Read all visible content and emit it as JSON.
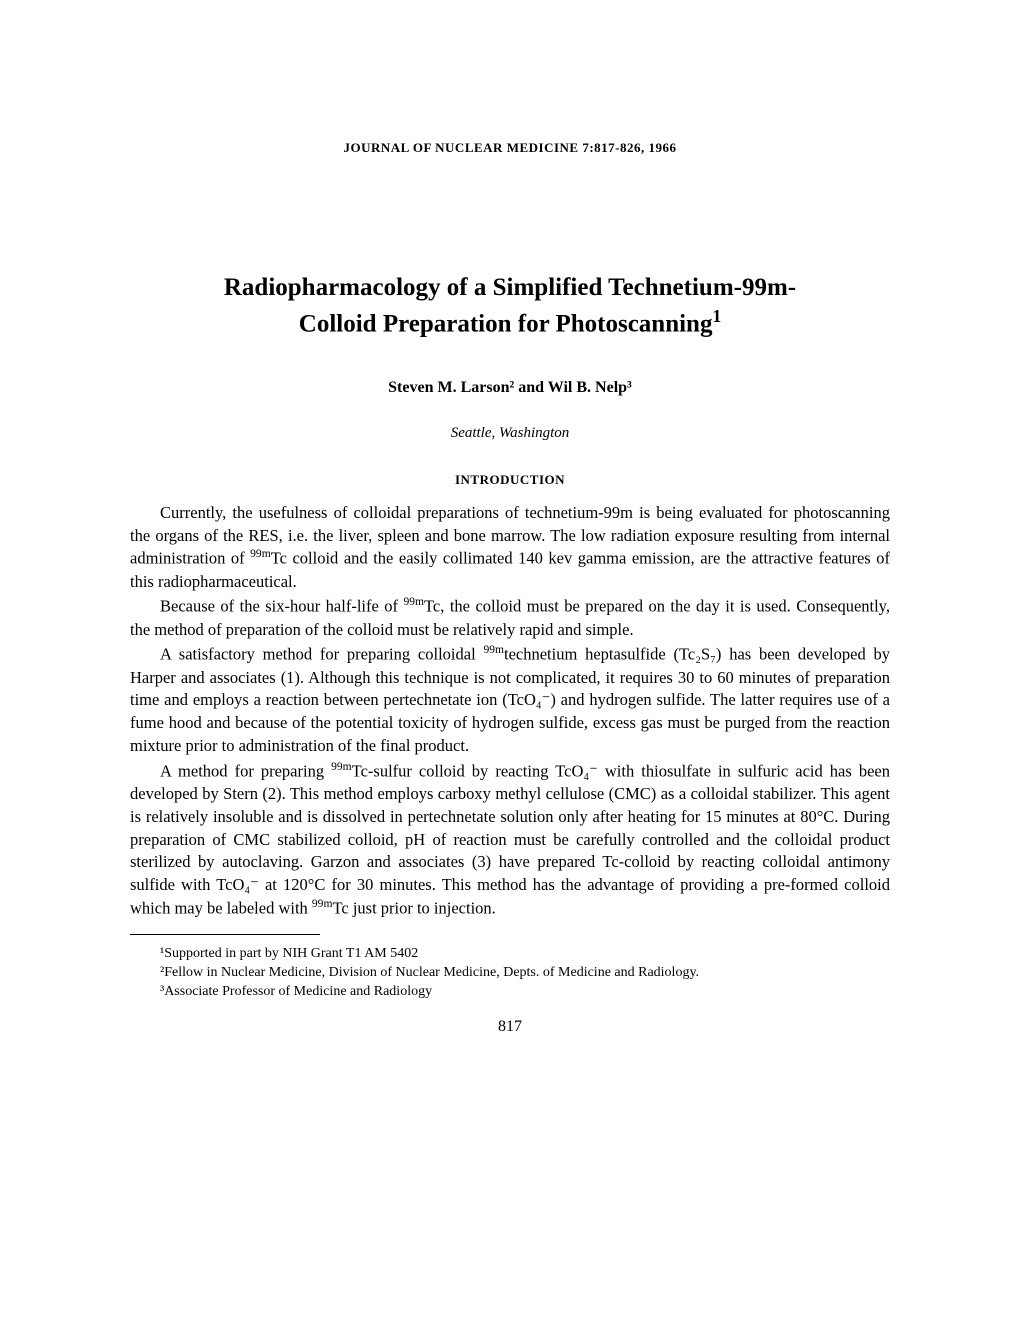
{
  "journal": {
    "name": "JOURNAL OF NUCLEAR MEDICINE",
    "citation": "7:817-826, 1966"
  },
  "title_line1": "Radiopharmacology of a Simplified Technetium-99m-",
  "title_line2": "Colloid Preparation for Photoscanning",
  "title_sup": "1",
  "authors": "Steven M. Larson² and Wil B. Nelp³",
  "location": "Seattle, Washington",
  "section_heading": "INTRODUCTION",
  "paragraphs": {
    "p1_a": "Currently, the usefulness of colloidal preparations of technetium-99m is being evaluated for photoscanning the organs of the RES, i.e. the liver, spleen and bone marrow. The low radiation exposure resulting from internal administration of ",
    "p1_b": "Tc colloid and the easily collimated 140 kev gamma emission, are the attractive features of this radiopharmaceutical.",
    "p2_a": "Because of the six-hour half-life of ",
    "p2_b": "Tc, the colloid must be prepared on the day it is used. Consequently, the method of preparation of the colloid must be relatively rapid and simple.",
    "p3_a": "A satisfactory method for preparing colloidal ",
    "p3_b": "technetium heptasulfide (Tc₂S₇) has been developed by Harper and associates (1). Although this technique is not complicated, it requires 30 to 60 minutes of preparation time and employs a reaction between pertechnetate ion (TcO₄⁻) and hydrogen sulfide. The latter requires use of a fume hood and because of the potential toxicity of hydrogen sulfide, excess gas must be purged from the reaction mixture prior to administration of the final product.",
    "p4_a": "A method for preparing ",
    "p4_b": "Tc-sulfur colloid by reacting TcO₄⁻ with thiosulfate in sulfuric acid has been developed by Stern (2). This method employs carboxy methyl cellulose (CMC) as a colloidal stabilizer. This agent is relatively insoluble and is dissolved in pertechnetate solution only after heating for 15 minutes at 80°C. During preparation of CMC stabilized colloid, pH of reaction must be carefully controlled and the colloidal product sterilized by autoclaving. Garzon and associates (3) have prepared Tc-colloid by reacting colloidal antimony sulfide with TcO₄⁻ at 120°C for 30 minutes. This method has the advantage of providing a pre-formed colloid which may be labeled with ",
    "p4_c": "Tc just prior to injection."
  },
  "isotope_sup": "99m",
  "footnotes": {
    "f1": "¹Supported in part by NIH Grant T1 AM 5402",
    "f2": "²Fellow in Nuclear Medicine, Division of Nuclear Medicine, Depts. of Medicine and Radiology.",
    "f3": "³Associate Professor of Medicine and Radiology"
  },
  "page_number": "817"
}
